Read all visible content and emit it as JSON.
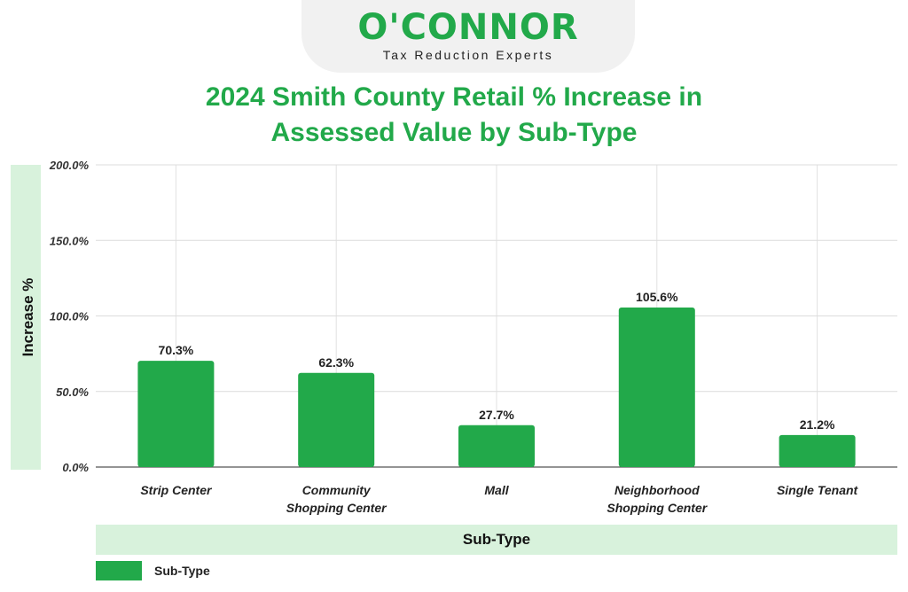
{
  "brand": {
    "name": "O'CONNOR",
    "tagline": "Tax Reduction Experts",
    "color": "#22a94a"
  },
  "chart_data": {
    "type": "bar",
    "title": "2024 Smith County Retail % Increase in Assessed Value by Sub-Type",
    "title_lines": [
      "2024 Smith County Retail % Increase in",
      "Assessed Value by Sub-Type"
    ],
    "xlabel": "Sub-Type",
    "ylabel": "Increase %",
    "ylim": [
      0,
      200
    ],
    "yticks": [
      0,
      50,
      100,
      150,
      200
    ],
    "ytick_labels": [
      "0.0%",
      "50.0%",
      "100.0%",
      "150.0%",
      "200.0%"
    ],
    "categories": [
      [
        "Strip Center"
      ],
      [
        "Community",
        "Shopping Center"
      ],
      [
        "Mall"
      ],
      [
        "Neighborhood",
        "Shopping Center"
      ],
      [
        "Single Tenant"
      ]
    ],
    "values": [
      70.3,
      62.3,
      27.7,
      105.6,
      21.2
    ],
    "value_labels": [
      "70.3%",
      "62.3%",
      "27.7%",
      "105.6%",
      "21.2%"
    ],
    "legend": [
      "Sub-Type"
    ],
    "bar_color": "#22a94a",
    "grid": true
  }
}
